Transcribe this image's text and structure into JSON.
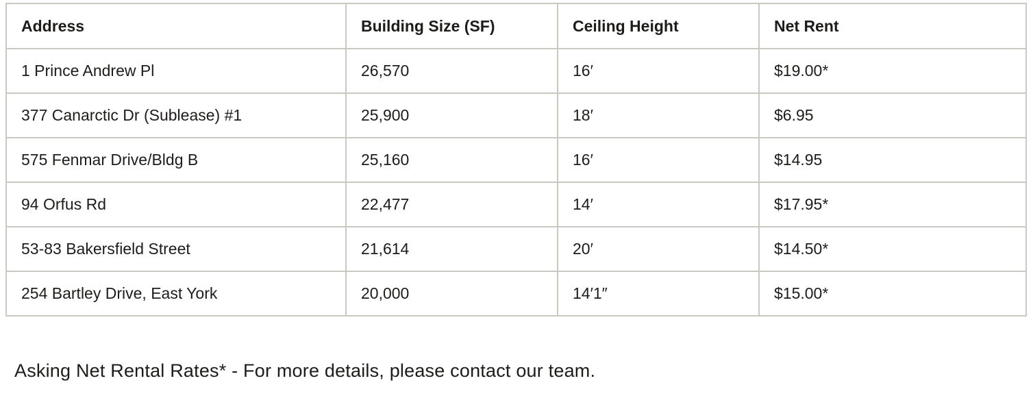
{
  "table": {
    "columns": {
      "address": "Address",
      "building_size": "Building Size (SF)",
      "ceiling_height": "Ceiling Height",
      "net_rent": "Net Rent"
    },
    "rows": [
      {
        "address": "1 Prince Andrew Pl",
        "building_size": "26,570",
        "ceiling_height": "16′",
        "net_rent": "$19.00*"
      },
      {
        "address": "377 Canarctic Dr (Sublease) #1",
        "building_size": "25,900",
        "ceiling_height": "18′",
        "net_rent": "$6.95"
      },
      {
        "address": "575 Fenmar Drive/Bldg B",
        "building_size": "25,160",
        "ceiling_height": "16′",
        "net_rent": "$14.95"
      },
      {
        "address": "94 Orfus Rd",
        "building_size": "22,477",
        "ceiling_height": "14′",
        "net_rent": "$17.95*"
      },
      {
        "address": "53-83 Bakersfield Street",
        "building_size": "21,614",
        "ceiling_height": "20′",
        "net_rent": "$14.50*"
      },
      {
        "address": "254 Bartley Drive, East York",
        "building_size": "20,000",
        "ceiling_height": "14′1″",
        "net_rent": "$15.00*"
      }
    ]
  },
  "footer": {
    "note": "Asking Net Rental Rates* - For more details, please contact our team."
  },
  "colors": {
    "border": "#cbc7c1",
    "text": "#1e1c1a",
    "background": "#ffffff"
  }
}
